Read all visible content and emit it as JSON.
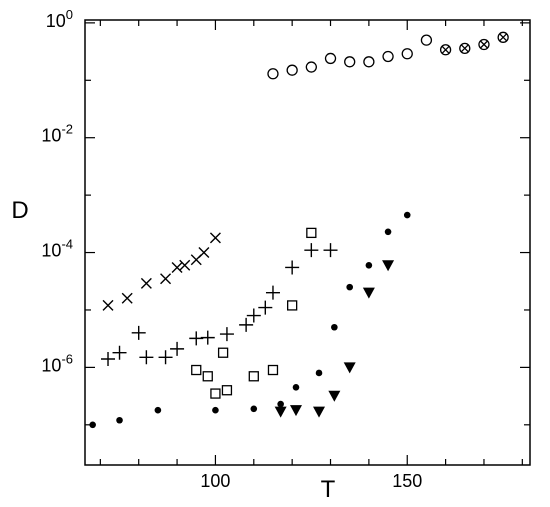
{
  "chart_data": {
    "type": "scatter",
    "title": "",
    "xlabel": "T",
    "ylabel": "D",
    "xlim": [
      66,
      182
    ],
    "ylim_log10": [
      -7.7,
      0.05
    ],
    "y_scale": "log",
    "grid": false,
    "legend": "none",
    "x_ticks": [
      {
        "value": 100,
        "label": "100"
      },
      {
        "value": 150,
        "label": "150"
      }
    ],
    "y_ticks": [
      {
        "value": 1,
        "base": "10",
        "exp": "0"
      },
      {
        "value": 0.01,
        "base": "10",
        "exp": "-2"
      },
      {
        "value": 0.0001,
        "base": "10",
        "exp": "-4"
      },
      {
        "value": 1e-06,
        "base": "10",
        "exp": "-6"
      }
    ],
    "series": [
      {
        "marker": "open-circle",
        "x": [
          115,
          120,
          125,
          130,
          135,
          140,
          145,
          150,
          155
        ],
        "y": [
          0.13,
          0.15,
          0.17,
          0.24,
          0.21,
          0.21,
          0.26,
          0.29,
          0.5
        ]
      },
      {
        "marker": "circle-x",
        "x": [
          160,
          165,
          170,
          175
        ],
        "y": [
          0.34,
          0.36,
          0.42,
          0.56
        ]
      },
      {
        "marker": "x",
        "x": [
          72,
          77,
          82,
          87,
          90,
          92,
          95,
          97,
          100
        ],
        "y": [
          1.2e-05,
          1.6e-05,
          2.9e-05,
          3.5e-05,
          5.5e-05,
          6e-05,
          7.5e-05,
          0.0001,
          0.00018
        ]
      },
      {
        "marker": "plus",
        "x": [
          72,
          75,
          80,
          82,
          87,
          90,
          95,
          98,
          103,
          108,
          110,
          113,
          115,
          120,
          125,
          130
        ],
        "y": [
          1.4e-06,
          1.8e-06,
          4e-06,
          1.5e-06,
          1.5e-06,
          2.1e-06,
          3.2e-06,
          3.3e-06,
          3.8e-06,
          5.5e-06,
          8e-06,
          1.1e-05,
          2e-05,
          5.5e-05,
          0.00011,
          0.00011
        ]
      },
      {
        "marker": "open-square",
        "x": [
          95,
          98,
          100,
          102,
          103,
          110,
          115,
          120,
          125
        ],
        "y": [
          9e-07,
          7e-07,
          3.5e-07,
          1.8e-06,
          4e-07,
          7e-07,
          9e-07,
          1.2e-05,
          0.00022
        ]
      },
      {
        "marker": "filled-triangle-down",
        "x": [
          117,
          121,
          127,
          131,
          135,
          140,
          145
        ],
        "y": [
          1.7e-07,
          1.8e-07,
          1.7e-07,
          3.2e-07,
          1e-06,
          2e-05,
          6e-05
        ]
      },
      {
        "marker": "filled-circle",
        "x": [
          68,
          75,
          85,
          100,
          110,
          117,
          121,
          127,
          131,
          135,
          140,
          145,
          150
        ],
        "y": [
          1e-07,
          1.2e-07,
          1.8e-07,
          1.8e-07,
          1.9e-07,
          2.3e-07,
          4.5e-07,
          8e-07,
          5e-06,
          2.5e-05,
          6e-05,
          0.00023,
          0.00045
        ]
      }
    ]
  }
}
